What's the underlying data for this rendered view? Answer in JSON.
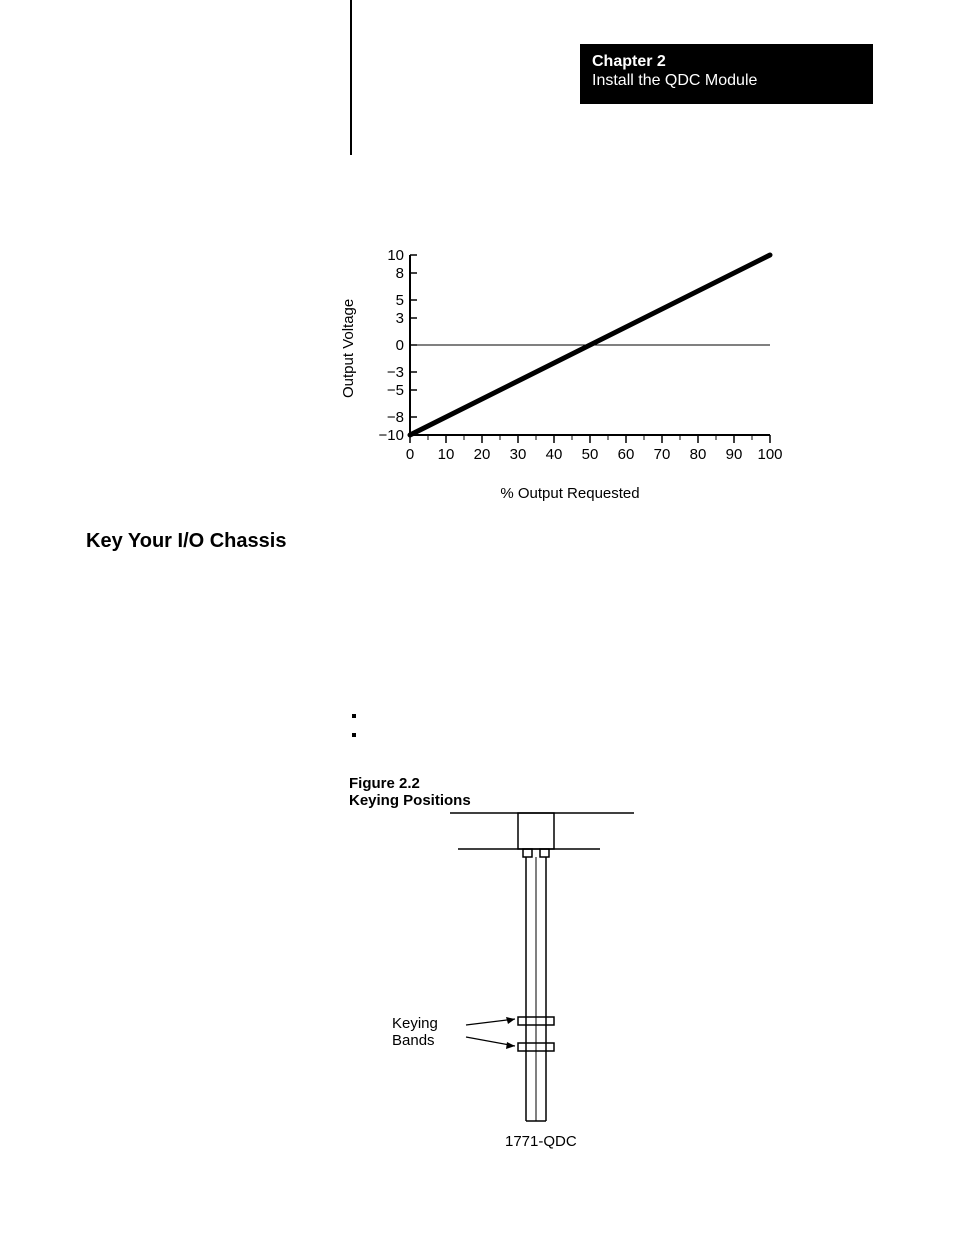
{
  "chapter": {
    "label": "Chapter  2",
    "title": "Install the QDC Module"
  },
  "section_heading": "Key Your I/O Chassis",
  "figure": {
    "number_line": "Figure 2.2",
    "title_line": "Keying Positions",
    "bands_label_line1": "Keying",
    "bands_label_line2": "Bands",
    "module_label": "1771-QDC"
  },
  "chart": {
    "type": "line",
    "y_label": "Output Voltage",
    "x_label": "% Output Requested",
    "y_ticks": [
      10,
      8,
      5,
      3,
      0,
      -3,
      -5,
      -8,
      -10
    ],
    "y_tick_labels": [
      "10",
      "8",
      "5",
      "3",
      "0",
      "−3",
      "−5",
      "−8",
      "−10"
    ],
    "x_ticks": [
      0,
      10,
      20,
      30,
      40,
      50,
      60,
      70,
      80,
      90,
      100
    ],
    "x_tick_labels": [
      "0",
      "10",
      "20",
      "30",
      "40",
      "50",
      "60",
      "70",
      "80",
      "90",
      "100"
    ],
    "series": {
      "points": [
        [
          0,
          -10
        ],
        [
          100,
          10
        ]
      ],
      "color": "#000000",
      "line_width": 5
    },
    "zero_line": true,
    "zero_line_width": 1,
    "axis_color": "#000000",
    "background_color": "#ffffff",
    "xlim": [
      0,
      100
    ],
    "ylim": [
      -10,
      10
    ],
    "x_minor_ticks_per_major": 1,
    "label_fontsize": 15,
    "tick_fontsize": 15
  }
}
